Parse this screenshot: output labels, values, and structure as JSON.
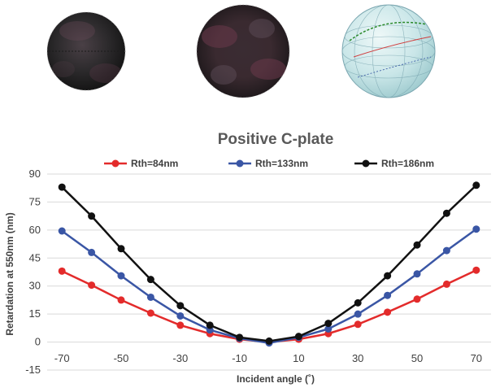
{
  "chart_data": {
    "type": "line",
    "title": "Positive C-plate",
    "xlabel": "Incident angle (˚)",
    "ylabel": "Retardation at 550nm (nm)",
    "x": [
      -70,
      -60,
      -50,
      -40,
      -30,
      -20,
      -10,
      0,
      10,
      20,
      30,
      40,
      50,
      60,
      70
    ],
    "xlim": [
      -75,
      75
    ],
    "ylim": [
      -15,
      90
    ],
    "xticks": [
      "-70",
      "-50",
      "-30",
      "-10",
      "10",
      "30",
      "50",
      "70"
    ],
    "yticks": [
      "90",
      "75",
      "60",
      "45",
      "30",
      "15",
      "0",
      "-15"
    ],
    "grid": true,
    "legend_position": "top",
    "series": [
      {
        "name": "Rth=84nm",
        "color": "#e32b2b",
        "values": [
          38,
          30.5,
          22.5,
          15.5,
          9,
          4.5,
          1.5,
          0,
          1.5,
          4.5,
          9.5,
          16,
          23,
          31,
          38.5
        ]
      },
      {
        "name": "Rth=133nm",
        "color": "#3a56a5",
        "values": [
          59.5,
          48,
          35.5,
          24,
          14,
          6.5,
          2,
          -0.5,
          2.5,
          7,
          15,
          25,
          36.5,
          49,
          60.5
        ]
      },
      {
        "name": "Rth=186nm",
        "color": "#111111",
        "values": [
          83,
          67.5,
          50,
          33.5,
          19.5,
          9,
          2.5,
          0.5,
          3,
          10,
          21,
          35.5,
          52,
          69,
          84
        ]
      }
    ]
  },
  "images": [
    {
      "name": "conoscope-84nm",
      "kind": "dark-disk"
    },
    {
      "name": "conoscope-133nm",
      "kind": "dark-disk-purple"
    },
    {
      "name": "poincare-sphere",
      "kind": "sphere"
    }
  ]
}
